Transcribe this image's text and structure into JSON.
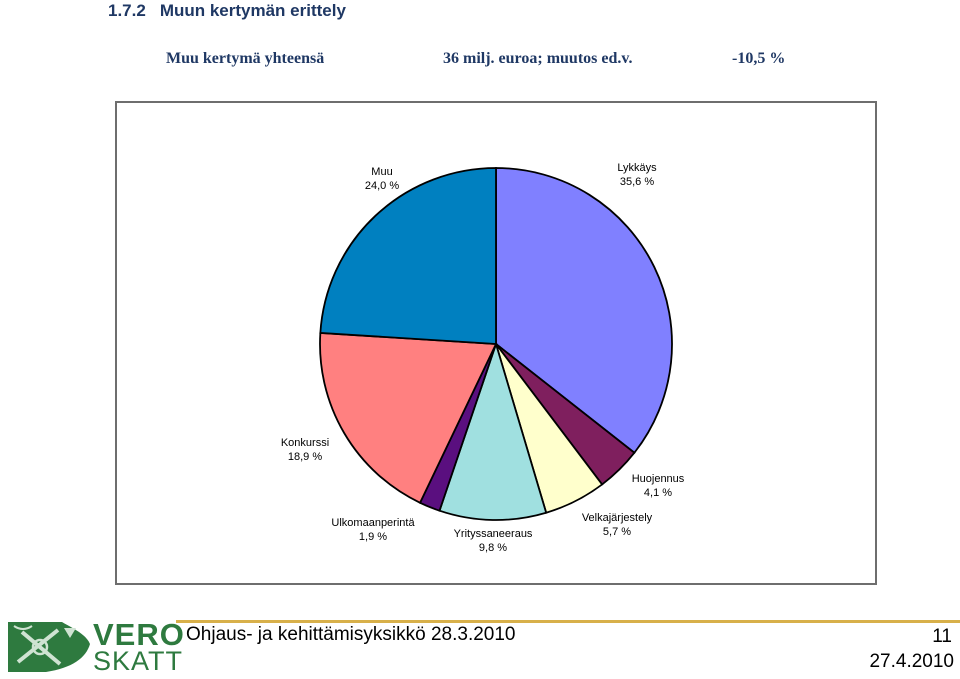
{
  "header": {
    "section_number": "1.7.2",
    "section_title": "Muun kertymän erittely"
  },
  "summary": {
    "label": "Muu kertymä yhteensä",
    "amount": "36 milj. euroa; muutos ed.v.",
    "change": "-10,5 %"
  },
  "chart_data": {
    "type": "pie",
    "title": "",
    "slices": [
      {
        "name": "Lykkäys",
        "value": 35.6,
        "value_label": "35,6 %",
        "color": "#8080ff"
      },
      {
        "name": "Huojennus",
        "value": 4.1,
        "value_label": "4,1 %",
        "color": "#7f1f5e"
      },
      {
        "name": "Velkajärjestely",
        "value": 5.7,
        "value_label": "5,7 %",
        "color": "#ffffcc"
      },
      {
        "name": "Yrityssaneeraus",
        "value": 9.8,
        "value_label": "9,8 %",
        "color": "#a0e0e0"
      },
      {
        "name": "Ulkomaanperintä",
        "value": 1.9,
        "value_label": "1,9 %",
        "color": "#5a0f7f"
      },
      {
        "name": "Konkurssi",
        "value": 18.9,
        "value_label": "18,9 %",
        "color": "#ff8080"
      },
      {
        "name": "Muu",
        "value": 24.0,
        "value_label": "24,0 %",
        "color": "#0080c0"
      }
    ],
    "start": "top, clockwise",
    "legend": "none (labels next to slices)"
  },
  "footer": {
    "text": "Ohjaus- ja kehittämisyksikkö 28.3.2010",
    "page_number": "11",
    "date": "27.4.2010"
  },
  "logo": {
    "word1": "VERO",
    "word2": "SKATT",
    "color": "#2e7a3f"
  }
}
